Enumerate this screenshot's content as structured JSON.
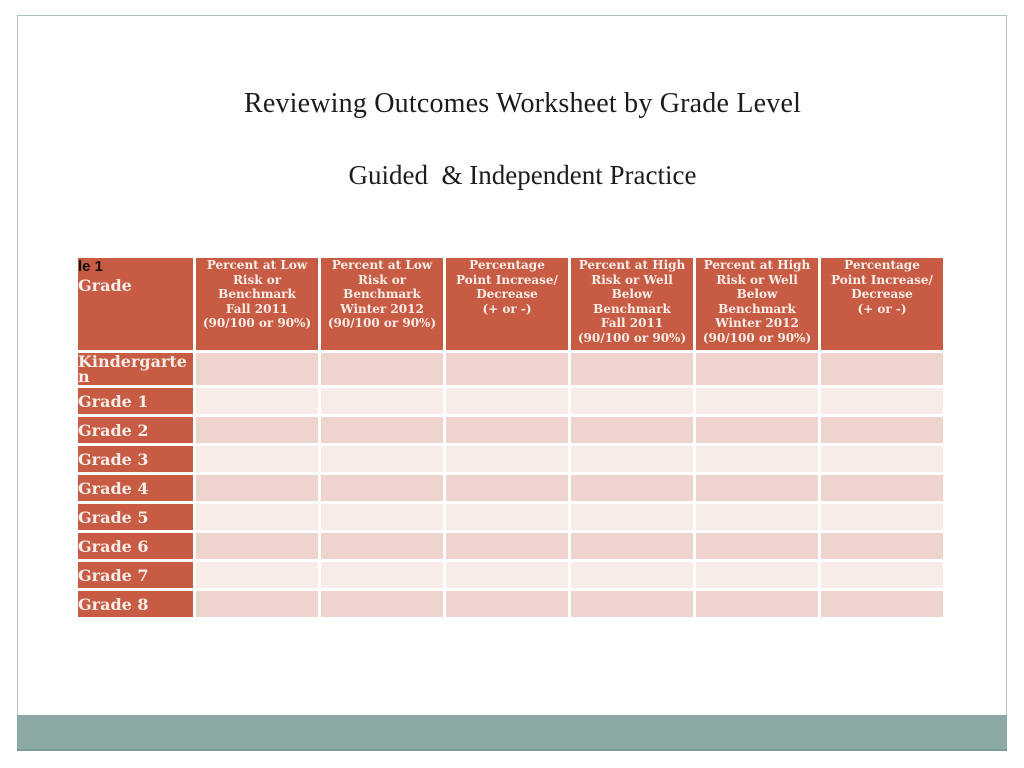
{
  "slide": {
    "title": "Reviewing Outcomes Worksheet by Grade Level",
    "subtitle": "Guided  & Independent Practice"
  },
  "table": {
    "corner": {
      "overflow_text": "le 1",
      "label": "Grade"
    },
    "column_headers": [
      "Percent at Low\nRisk or\nBenchmark\nFall 2011\n(90/100 or 90%)",
      "Percent at Low\nRisk or\nBenchmark\nWinter 2012\n(90/100 or 90%)",
      "Percentage\nPoint Increase/\nDecrease\n(+ or -)",
      "Percent at High\nRisk or Well\nBelow\nBenchmark\nFall 2011\n(90/100 or 90%)",
      "Percent at High\nRisk or Well\nBelow\nBenchmark\nWinter 2012\n(90/100 or 90%)",
      "Percentage\nPoint Increase/\nDecrease\n(+ or -)"
    ],
    "rows": [
      {
        "label": "Kindergarten",
        "values": [
          "",
          "",
          "",
          "",
          "",
          ""
        ]
      },
      {
        "label": "Grade 1",
        "values": [
          "",
          "",
          "",
          "",
          "",
          ""
        ]
      },
      {
        "label": "Grade 2",
        "values": [
          "",
          "",
          "",
          "",
          "",
          ""
        ]
      },
      {
        "label": "Grade 3",
        "values": [
          "",
          "",
          "",
          "",
          "",
          ""
        ]
      },
      {
        "label": "Grade 4",
        "values": [
          "",
          "",
          "",
          "",
          "",
          ""
        ]
      },
      {
        "label": "Grade 5",
        "values": [
          "",
          "",
          "",
          "",
          "",
          ""
        ]
      },
      {
        "label": "Grade 6",
        "values": [
          "",
          "",
          "",
          "",
          "",
          ""
        ]
      },
      {
        "label": "Grade 7",
        "values": [
          "",
          "",
          "",
          "",
          "",
          ""
        ]
      },
      {
        "label": "Grade 8",
        "values": [
          "",
          "",
          "",
          "",
          "",
          ""
        ]
      }
    ]
  },
  "colors": {
    "table_header_bg": "#C75B44",
    "row_band_dark": "#EFD3CE",
    "row_band_light": "#F8ECE9",
    "header_text": "#F6EDE8",
    "corner_overflow_text": "#111111",
    "footer_bar": "#8CA9A5",
    "frame_border": "#ABC1BE",
    "title_text": "#1C1C1C"
  }
}
